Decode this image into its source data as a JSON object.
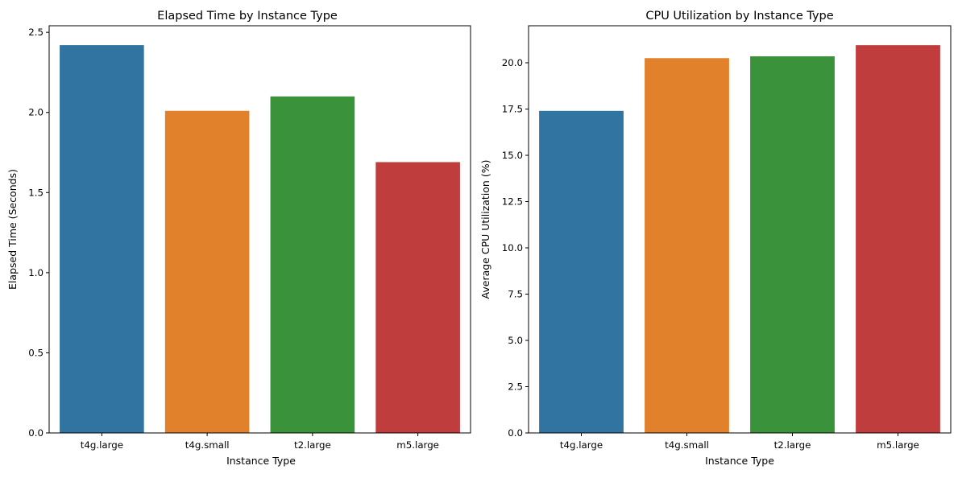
{
  "chart_data": [
    {
      "type": "bar",
      "title": "Elapsed Time by Instance Type",
      "xlabel": "Instance Type",
      "ylabel": "Elapsed Time (Seconds)",
      "categories": [
        "t4g.large",
        "t4g.small",
        "t2.large",
        "m5.large"
      ],
      "values": [
        2.42,
        2.01,
        2.1,
        1.69
      ],
      "colors": [
        "#3274a1",
        "#e1812c",
        "#3a923a",
        "#c03d3e"
      ],
      "ylim": [
        0,
        2.541
      ],
      "yticks": [
        0.0,
        0.5,
        1.0,
        1.5,
        2.0,
        2.5
      ],
      "ytick_labels": [
        "0.0",
        "0.5",
        "1.0",
        "1.5",
        "2.0",
        "2.5"
      ],
      "grid": false,
      "legend": "none"
    },
    {
      "type": "bar",
      "title": "CPU Utilization by Instance Type",
      "xlabel": "Instance Type",
      "ylabel": "Average CPU Utilization (%)",
      "categories": [
        "t4g.large",
        "t4g.small",
        "t2.large",
        "m5.large"
      ],
      "values": [
        17.4,
        20.25,
        20.35,
        20.95
      ],
      "colors": [
        "#3274a1",
        "#e1812c",
        "#3a923a",
        "#c03d3e"
      ],
      "ylim": [
        0,
        22.0
      ],
      "yticks": [
        0.0,
        2.5,
        5.0,
        7.5,
        10.0,
        12.5,
        15.0,
        17.5,
        20.0
      ],
      "ytick_labels": [
        "0.0",
        "2.5",
        "5.0",
        "7.5",
        "10.0",
        "12.5",
        "15.0",
        "17.5",
        "20.0"
      ],
      "grid": false,
      "legend": "none"
    }
  ]
}
